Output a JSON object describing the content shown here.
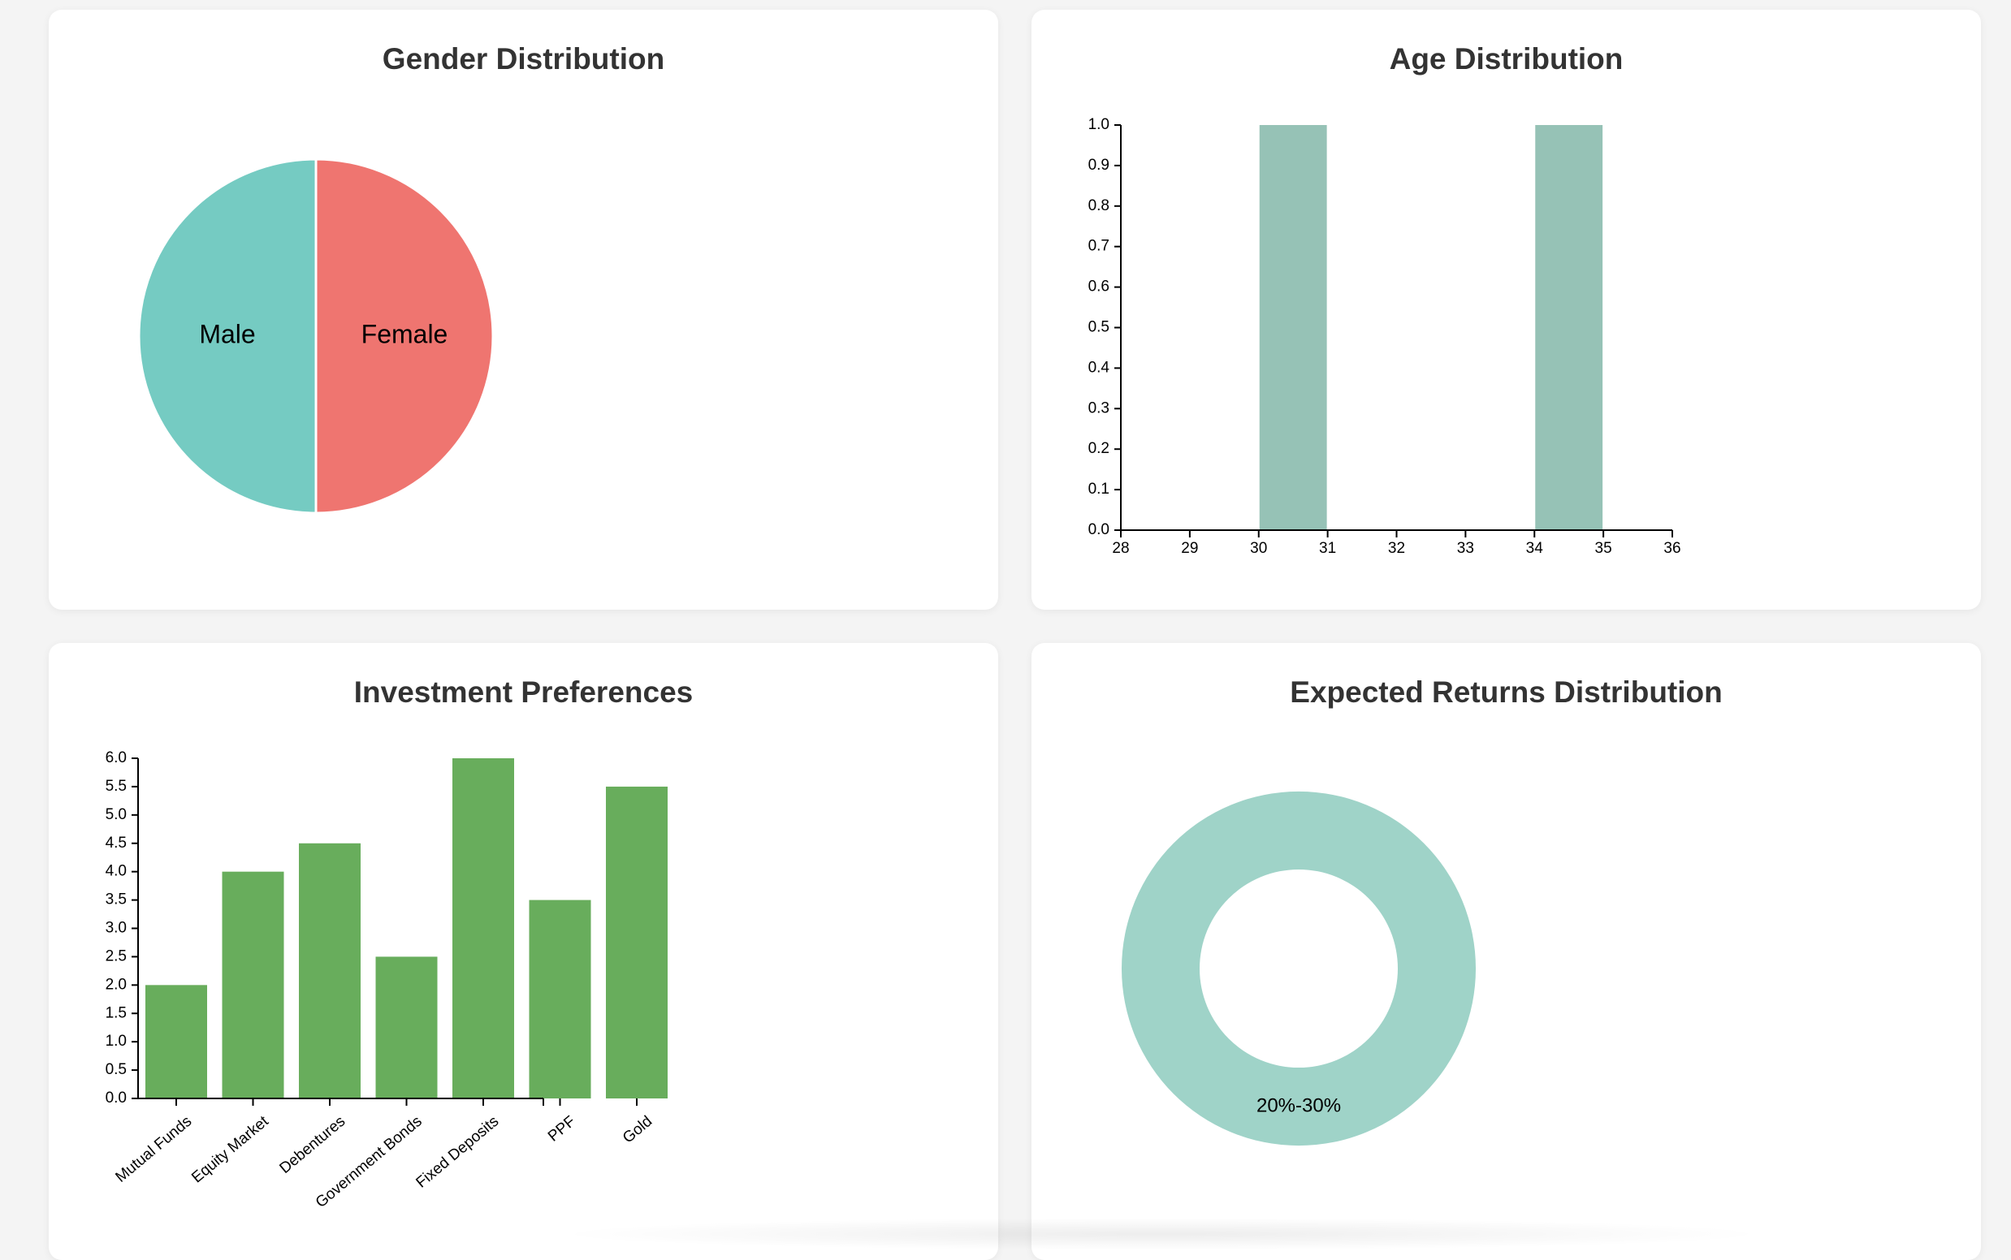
{
  "colors": {
    "male": "#75cbc2",
    "female": "#ef7570",
    "age_bar": "#96c2b6",
    "invest_bar": "#68ad5c",
    "returns_ring": "#9fd3c8",
    "title_text": "#333333"
  },
  "gender": {
    "title": "Gender Distribution",
    "chart_data": {
      "type": "pie",
      "title": "Gender Distribution",
      "slices": [
        {
          "label": "Male",
          "value": 1
        },
        {
          "label": "Female",
          "value": 1
        }
      ]
    }
  },
  "age": {
    "title": "Age Distribution",
    "chart_data": {
      "type": "bar",
      "title": "Age Distribution",
      "xlabel": "",
      "ylabel": "",
      "xlim": [
        28,
        36
      ],
      "ylim": [
        0,
        1
      ],
      "x_ticks": [
        "28",
        "29",
        "30",
        "31",
        "32",
        "33",
        "34",
        "35",
        "36"
      ],
      "y_ticks": [
        "0.0",
        "0.1",
        "0.2",
        "0.3",
        "0.4",
        "0.5",
        "0.6",
        "0.7",
        "0.8",
        "0.9",
        "1.0"
      ],
      "bins": [
        {
          "x0": 30,
          "x1": 31,
          "value": 1
        },
        {
          "x0": 34,
          "x1": 35,
          "value": 1
        }
      ]
    }
  },
  "invest": {
    "title": "Investment Preferences",
    "chart_data": {
      "type": "bar",
      "title": "Investment Preferences",
      "xlabel": "",
      "ylabel": "",
      "categories": [
        "Mutual Funds",
        "Equity Market",
        "Debentures",
        "Government Bonds",
        "Fixed Deposits",
        "PPF",
        "Gold"
      ],
      "values": [
        2,
        4,
        4.5,
        2.5,
        6,
        3.5,
        5.5
      ],
      "ylim": [
        0,
        6
      ],
      "y_ticks": [
        "0.0",
        "0.5",
        "1.0",
        "1.5",
        "2.0",
        "2.5",
        "3.0",
        "3.5",
        "4.0",
        "4.5",
        "5.0",
        "5.5",
        "6.0"
      ]
    }
  },
  "returns": {
    "title": "Expected Returns Distribution",
    "chart_data": {
      "type": "pie",
      "title": "Expected Returns Distribution",
      "slices": [
        {
          "label": "20%-30%",
          "value": 1
        }
      ]
    }
  }
}
